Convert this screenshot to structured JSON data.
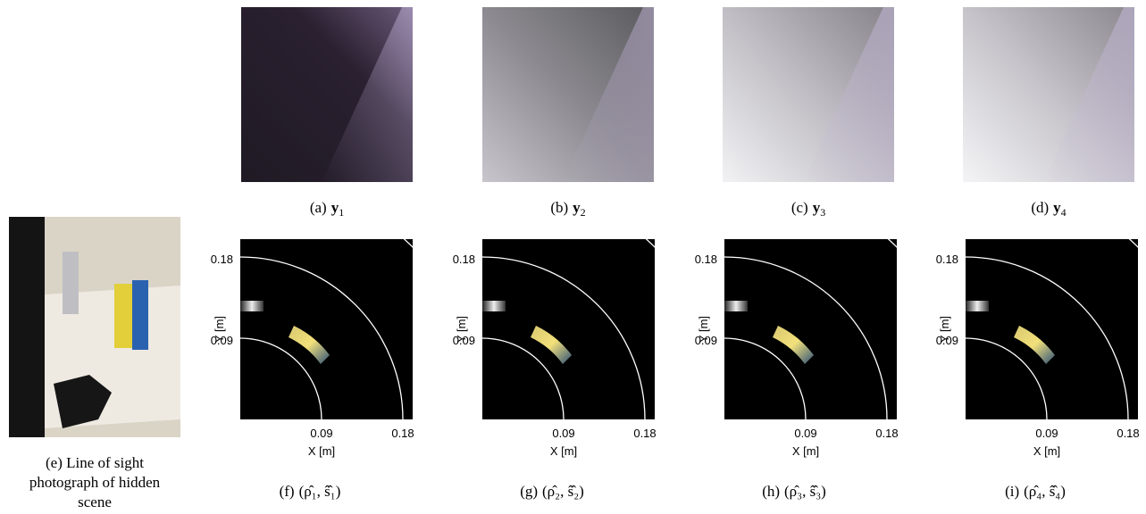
{
  "top_panels": [
    {
      "label": "(a)",
      "symbol": "y",
      "subscript": "1"
    },
    {
      "label": "(b)",
      "symbol": "y",
      "subscript": "2"
    },
    {
      "label": "(c)",
      "symbol": "y",
      "subscript": "3"
    },
    {
      "label": "(d)",
      "symbol": "y",
      "subscript": "4"
    }
  ],
  "photo": {
    "caption_lines": [
      "(e) Line of sight",
      "photograph of hidden",
      "scene"
    ]
  },
  "plots": [
    {
      "label": "(f)",
      "math": "(ρ̂₁, ŝ̂₁)"
    },
    {
      "label": "(g)",
      "math": "(ρ̂₂, ŝ̂₂)"
    },
    {
      "label": "(h)",
      "math": "(ρ̂₃, ŝ̂₃)"
    },
    {
      "label": "(i)",
      "math": "(ρ̂₄, ŝ̂₄)"
    }
  ],
  "axes": {
    "xlabel": "X [m]",
    "ylabel": "Y [m]",
    "xticks": [
      "0.09",
      "0.18"
    ],
    "yticks": [
      "0.18",
      "0.09"
    ]
  }
}
